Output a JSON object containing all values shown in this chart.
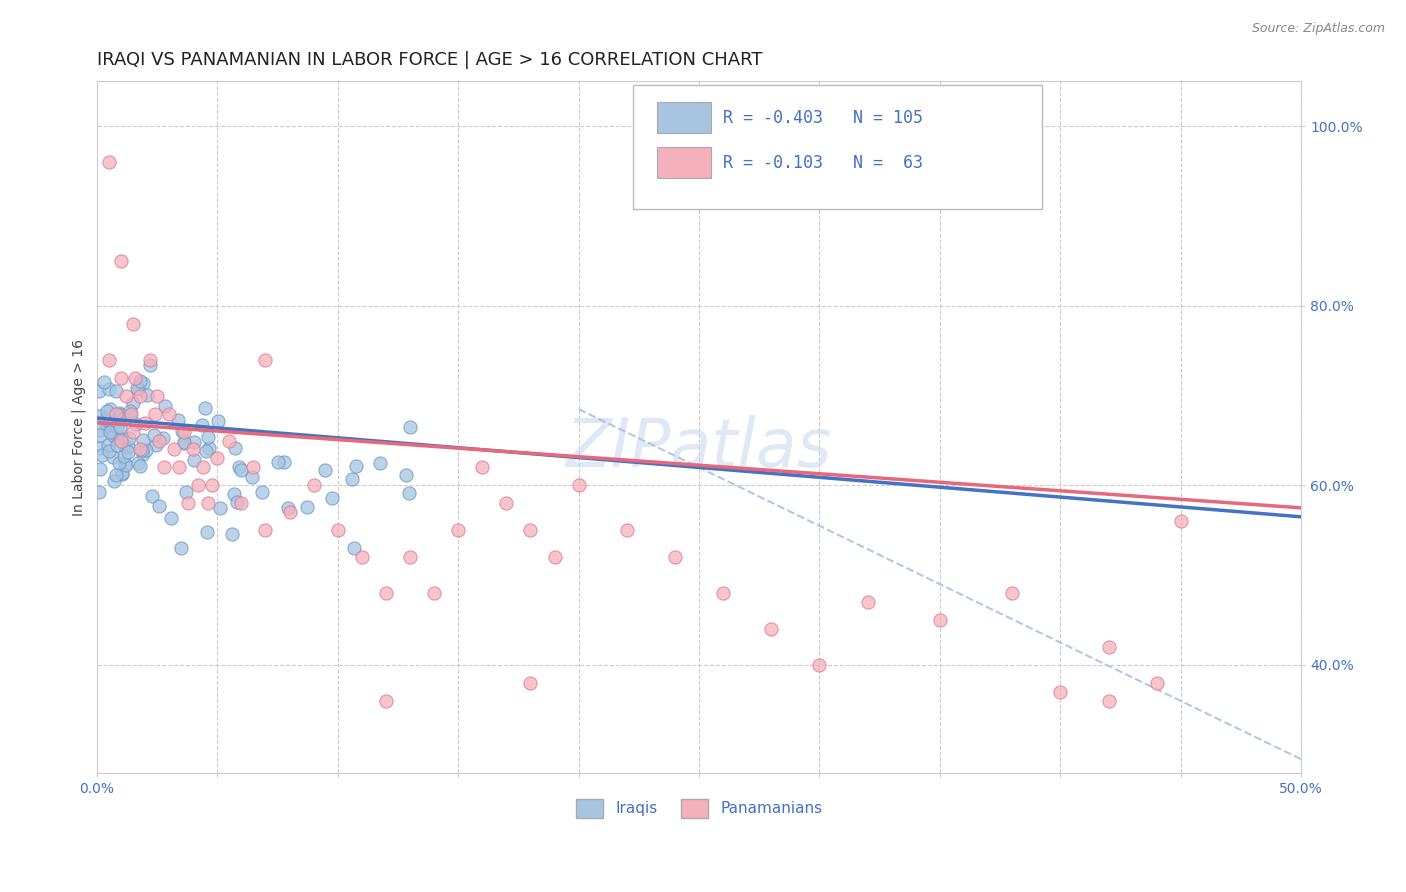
{
  "title": "IRAQI VS PANAMANIAN IN LABOR FORCE | AGE > 16 CORRELATION CHART",
  "source_text": "Source: ZipAtlas.com",
  "ylabel": "In Labor Force | Age > 16",
  "xlim": [
    0.0,
    0.5
  ],
  "ylim": [
    0.28,
    1.05
  ],
  "iraqi_color": "#a8c4e0",
  "iraqi_edge_color": "#6699cc",
  "panamanian_color": "#f4b0bc",
  "panamanian_edge_color": "#e07890",
  "iraqi_line_color": "#4472c4",
  "panamanian_line_color": "#e8687a",
  "ref_line_color": "#a8c4e0",
  "background_color": "#ffffff",
  "grid_color": "#cccccc",
  "title_fontsize": 13,
  "axis_label_fontsize": 10,
  "tick_fontsize": 10,
  "legend_text_color": "#4472c4",
  "legend_R_iraqi": "-0.403",
  "legend_N_iraqi": "105",
  "legend_R_panamanian": "-0.103",
  "legend_N_panamanian": "63",
  "legend_label_iraqi": "Iraqis",
  "legend_label_panamanian": "Panamanians",
  "iraqi_trend_x0": 0.0,
  "iraqi_trend_x1": 0.5,
  "iraqi_trend_y0": 0.675,
  "iraqi_trend_y1": 0.565,
  "panamanian_trend_x0": 0.0,
  "panamanian_trend_x1": 0.5,
  "panamanian_trend_y0": 0.67,
  "panamanian_trend_y1": 0.575,
  "ref_line_x0": 0.2,
  "ref_line_x1": 0.5,
  "ref_line_y0": 0.685,
  "ref_line_y1": 0.295
}
